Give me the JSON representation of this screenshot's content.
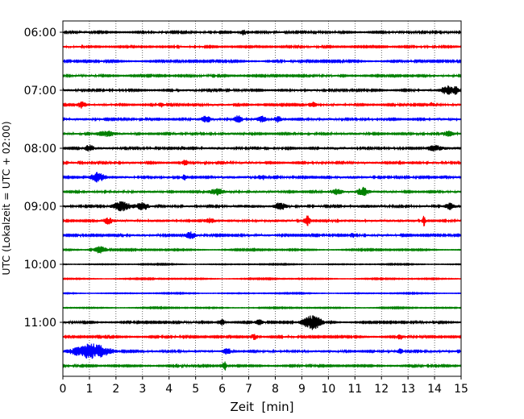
{
  "chart_data": {
    "type": "line",
    "title": "",
    "xlabel": "Zeit  [min]",
    "ylabel": "UTC (Lokalzeit = UTC + 02:00)",
    "xlim": [
      0,
      15
    ],
    "x_ticks": [
      "0",
      "1",
      "2",
      "3",
      "4",
      "5",
      "6",
      "7",
      "8",
      "9",
      "10",
      "11",
      "12",
      "13",
      "14",
      "15"
    ],
    "y_ticks": [
      "06:00",
      "07:00",
      "08:00",
      "09:00",
      "10:00",
      "11:00"
    ],
    "grid": "vertical dotted",
    "colors": [
      "#000000",
      "#ff0000",
      "#0000ff",
      "#008000"
    ],
    "series": [
      {
        "start": "06:00",
        "noise": 0.32,
        "events": [
          [
            6.8,
            0.9,
            0.12
          ]
        ]
      },
      {
        "start": "06:15",
        "noise": 0.28,
        "events": []
      },
      {
        "start": "06:30",
        "noise": 0.28,
        "events": []
      },
      {
        "start": "06:45",
        "noise": 0.3,
        "events": []
      },
      {
        "start": "07:00",
        "noise": 0.34,
        "events": [
          [
            14.5,
            1.2,
            0.25
          ],
          [
            14.8,
            0.9,
            0.1
          ]
        ]
      },
      {
        "start": "07:15",
        "noise": 0.33,
        "events": [
          [
            0.7,
            1.0,
            0.15
          ],
          [
            3.7,
            0.6,
            0.1
          ],
          [
            9.4,
            0.8,
            0.15
          ],
          [
            13.9,
            0.6,
            0.1
          ]
        ]
      },
      {
        "start": "07:30",
        "noise": 0.36,
        "events": [
          [
            5.4,
            0.9,
            0.15
          ],
          [
            6.6,
            1.0,
            0.15
          ],
          [
            7.5,
            0.9,
            0.15
          ],
          [
            8.1,
            0.9,
            0.15
          ]
        ]
      },
      {
        "start": "07:45",
        "noise": 0.38,
        "events": [
          [
            1.6,
            0.7,
            0.3
          ],
          [
            14.5,
            0.7,
            0.2
          ]
        ]
      },
      {
        "start": "08:00",
        "noise": 0.38,
        "events": [
          [
            1.0,
            0.8,
            0.15
          ],
          [
            4.5,
            0.7,
            0.1
          ],
          [
            14.0,
            0.8,
            0.3
          ]
        ]
      },
      {
        "start": "08:15",
        "noise": 0.35,
        "events": [
          [
            4.6,
            0.8,
            0.1
          ],
          [
            12.7,
            0.6,
            0.1
          ]
        ]
      },
      {
        "start": "08:30",
        "noise": 0.4,
        "events": [
          [
            1.3,
            1.3,
            0.25
          ],
          [
            4.6,
            0.8,
            0.1
          ],
          [
            7.5,
            0.7,
            0.15
          ]
        ]
      },
      {
        "start": "08:45",
        "noise": 0.4,
        "events": [
          [
            11.3,
            1.2,
            0.2
          ],
          [
            5.8,
            0.8,
            0.25
          ],
          [
            10.3,
            0.7,
            0.2
          ]
        ]
      },
      {
        "start": "09:00",
        "noise": 0.45,
        "events": [
          [
            2.2,
            1.1,
            0.3
          ],
          [
            3.0,
            1.0,
            0.2
          ],
          [
            8.2,
            1.1,
            0.2
          ],
          [
            14.6,
            0.9,
            0.2
          ]
        ]
      },
      {
        "start": "09:15",
        "noise": 0.45,
        "events": [
          [
            1.7,
            0.8,
            0.15
          ],
          [
            9.2,
            1.5,
            0.12
          ],
          [
            13.6,
            1.5,
            0.06
          ],
          [
            5.5,
            0.7,
            0.2
          ]
        ]
      },
      {
        "start": "09:30",
        "noise": 0.35,
        "events": [
          [
            4.8,
            1.0,
            0.2
          ],
          [
            10.9,
            0.7,
            0.1
          ]
        ]
      },
      {
        "start": "09:45",
        "noise": 0.2,
        "events": [
          [
            1.4,
            1.1,
            0.25
          ]
        ]
      },
      {
        "start": "10:00",
        "noise": 0.14,
        "events": []
      },
      {
        "start": "10:15",
        "noise": 0.16,
        "events": []
      },
      {
        "start": "10:30",
        "noise": 0.14,
        "events": []
      },
      {
        "start": "10:45",
        "noise": 0.16,
        "events": []
      },
      {
        "start": "11:00",
        "noise": 0.28,
        "events": [
          [
            9.4,
            2.0,
            0.35
          ],
          [
            6.0,
            0.9,
            0.1
          ],
          [
            7.4,
            0.7,
            0.15
          ]
        ]
      },
      {
        "start": "11:15",
        "noise": 0.28,
        "events": [
          [
            7.2,
            0.9,
            0.15
          ],
          [
            12.7,
            0.7,
            0.1
          ]
        ]
      },
      {
        "start": "11:30",
        "noise": 0.38,
        "events": [
          [
            1.1,
            2.0,
            0.7
          ],
          [
            6.2,
            0.9,
            0.15
          ],
          [
            12.7,
            0.7,
            0.1
          ]
        ]
      },
      {
        "start": "11:45",
        "noise": 0.26,
        "events": [
          [
            6.1,
            1.5,
            0.08
          ]
        ]
      }
    ]
  }
}
